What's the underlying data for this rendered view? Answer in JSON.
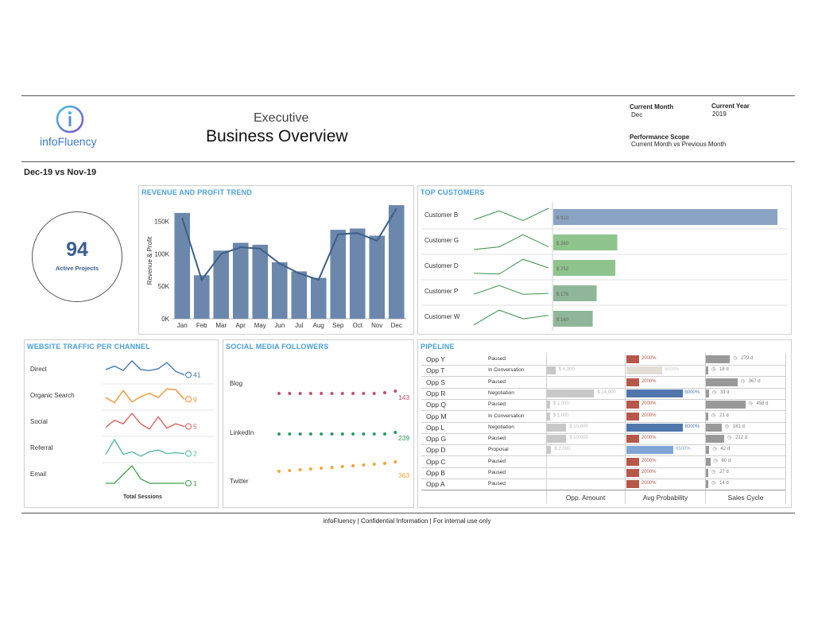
{
  "header": {
    "logo_text": "infoFluency",
    "title_top": "Executive",
    "title_main": "Business Overview",
    "current_month_label": "Current Month",
    "current_month_value": "Dec",
    "current_year_label": "Current Year",
    "current_year_value": "2019",
    "scope_label": "Performance Scope",
    "scope_value": "Current Month vs Previous Month"
  },
  "period_label": "Dec-19 vs Nov-19",
  "kpi": {
    "value": "94",
    "label": "Active Projects"
  },
  "revenue": {
    "title": "REVENUE AND PROFIT TREND",
    "ylabel": "Revenue & Profit",
    "yticks": [
      "150K",
      "100K",
      "50K",
      "0K"
    ]
  },
  "top_customers": {
    "title": "TOP CUSTOMERS",
    "items": [
      {
        "name": "Customer B",
        "value_label": "$ 910"
      },
      {
        "name": "Customer G",
        "value_label": "$ 260"
      },
      {
        "name": "Customer D",
        "value_label": "$ 252"
      },
      {
        "name": "Customer P",
        "value_label": "$ 176"
      },
      {
        "name": "Customer W",
        "value_label": "$ 160"
      }
    ]
  },
  "traffic": {
    "title": "WEBSITE TRAFFIC PER CHANNEL",
    "axis_label": "Total Sessions",
    "channels": [
      {
        "name": "Direct",
        "value": "41",
        "color": "#3a6fb0"
      },
      {
        "name": "Organic Search",
        "value": "9",
        "color": "#f28e2b"
      },
      {
        "name": "Social",
        "value": "5",
        "color": "#e15759"
      },
      {
        "name": "Referral",
        "value": "2",
        "color": "#4eb4a4"
      },
      {
        "name": "Email",
        "value": "1",
        "color": "#3aa24a"
      }
    ]
  },
  "social": {
    "title": "SOCIAL MEDIA FOLLOWERS",
    "channels": [
      {
        "name": "Blog",
        "value": "143",
        "color": "#c0536a"
      },
      {
        "name": "LinkedIn",
        "value": "239",
        "color": "#2e9a62"
      },
      {
        "name": "Twitter",
        "value": "363",
        "color": "#f2a53a"
      }
    ]
  },
  "pipeline": {
    "title": "PIPELINE",
    "columns": [
      "Opp. Amount",
      "Avg Probability",
      "Sales Cycle"
    ],
    "rows": [
      {
        "name": "Opp Y",
        "stage": "Paused",
        "amount": "",
        "amount_frac": 0,
        "prob": "2000%",
        "prob_frac": 0.22,
        "prob_color": "#b5584a",
        "cycle": "279 d",
        "cycle_frac": 0.55
      },
      {
        "name": "Opp T",
        "stage": "In Conversation",
        "amount": "$ 4,000",
        "amount_frac": 0.12,
        "prob": "5000%",
        "prob_frac": 0.62,
        "prob_color": "#e2ded6",
        "cycle": "18 d",
        "cycle_frac": 0.05
      },
      {
        "name": "Opp S",
        "stage": "Paused",
        "amount": "",
        "amount_frac": 0,
        "prob": "2000%",
        "prob_frac": 0.22,
        "prob_color": "#b5584a",
        "cycle": "367 d",
        "cycle_frac": 0.72
      },
      {
        "name": "Opp R",
        "stage": "Negotiation",
        "amount": "$ 24,000",
        "amount_frac": 0.66,
        "prob": "8000%",
        "prob_frac": 0.98,
        "prob_color": "#4f77ab",
        "cycle": "33 d",
        "cycle_frac": 0.07
      },
      {
        "name": "Opp Q",
        "stage": "Paused",
        "amount": "$ 1,000",
        "amount_frac": 0.04,
        "prob": "2000%",
        "prob_frac": 0.22,
        "prob_color": "#b5584a",
        "cycle": "458 d",
        "cycle_frac": 0.9
      },
      {
        "name": "Opp M",
        "stage": "In Conversation",
        "amount": "$ 1,000",
        "amount_frac": 0.04,
        "prob": "2000%",
        "prob_frac": 0.22,
        "prob_color": "#b5584a",
        "cycle": "21 d",
        "cycle_frac": 0.05
      },
      {
        "name": "Opp L",
        "stage": "Negotiation",
        "amount": "$ 10,000",
        "amount_frac": 0.27,
        "prob": "8000%",
        "prob_frac": 0.98,
        "prob_color": "#4f77ab",
        "cycle": "181 d",
        "cycle_frac": 0.36
      },
      {
        "name": "Opp G",
        "stage": "Paused",
        "amount": "$ 10,000",
        "amount_frac": 0.27,
        "prob": "2000%",
        "prob_frac": 0.22,
        "prob_color": "#b5584a",
        "cycle": "212 d",
        "cycle_frac": 0.42
      },
      {
        "name": "Opp D",
        "stage": "Proposal",
        "amount": "$ 2,000",
        "amount_frac": 0.06,
        "prob": "6500%",
        "prob_frac": 0.82,
        "prob_color": "#7fa6d4",
        "cycle": "42 d",
        "cycle_frac": 0.08
      },
      {
        "name": "Opp C",
        "stage": "Paused",
        "amount": "",
        "amount_frac": 0,
        "prob": "2000%",
        "prob_frac": 0.22,
        "prob_color": "#b5584a",
        "cycle": "60 d",
        "cycle_frac": 0.1
      },
      {
        "name": "Opp B",
        "stage": "Paused",
        "amount": "",
        "amount_frac": 0,
        "prob": "2000%",
        "prob_frac": 0.22,
        "prob_color": "#b5584a",
        "cycle": "27 d",
        "cycle_frac": 0.05
      },
      {
        "name": "Opp A",
        "stage": "Paused",
        "amount": "",
        "amount_frac": 0,
        "prob": "2000%",
        "prob_frac": 0.22,
        "prob_color": "#b5584a",
        "cycle": "14 d",
        "cycle_frac": 0.03
      }
    ]
  },
  "footer": "infoFluency | Confidential Information | For internal use only",
  "chart_data": [
    {
      "type": "bar",
      "title": "REVENUE AND PROFIT TREND",
      "ylabel": "Revenue & Profit",
      "categories": [
        "Jan",
        "Feb",
        "Mar",
        "Apr",
        "May",
        "Jun",
        "Jul",
        "Aug",
        "Sep",
        "Oct",
        "Nov",
        "Dec"
      ],
      "series": [
        {
          "values": [
            163000,
            67000,
            105000,
            117000,
            114000,
            87000,
            73000,
            63000,
            137000,
            139000,
            128000,
            175000
          ]
        },
        {
          "values": [
            155000,
            60000,
            100000,
            110000,
            108000,
            85000,
            70000,
            60000,
            130000,
            132000,
            120000,
            170000
          ]
        }
      ],
      "ylim": [
        0,
        180000
      ]
    },
    {
      "type": "bar",
      "title": "TOP CUSTOMERS",
      "categories": [
        "Customer B",
        "Customer G",
        "Customer D",
        "Customer P",
        "Customer W"
      ],
      "values": [
        910,
        260,
        252,
        176,
        160
      ]
    }
  ]
}
